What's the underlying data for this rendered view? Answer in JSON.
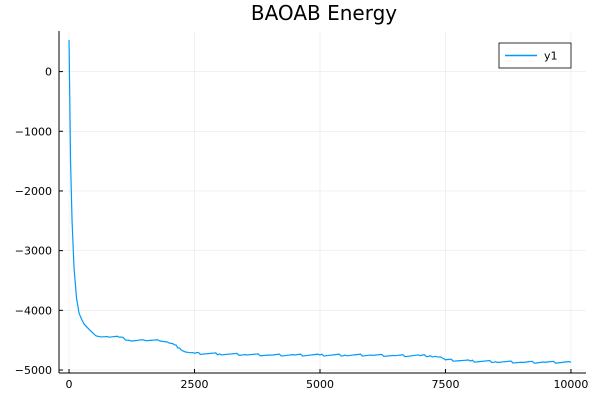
{
  "chart_data": {
    "type": "line",
    "title": "BAOAB Energy",
    "xlabel": "",
    "ylabel": "",
    "xlim": [
      -200,
      10300
    ],
    "ylim": [
      -5050,
      680
    ],
    "x_ticks": [
      0,
      2500,
      5000,
      7500,
      10000
    ],
    "y_ticks": [
      0,
      -1000,
      -2000,
      -3000,
      -4000,
      -5000
    ],
    "x_tick_labels": [
      "0",
      "2500",
      "5000",
      "7500",
      "10000"
    ],
    "y_tick_labels": [
      "0",
      "−1000",
      "−2000",
      "−3000",
      "−4000",
      "−5000"
    ],
    "grid": true,
    "legend": "top-right",
    "series": [
      {
        "name": "y1",
        "color": "#009AFA",
        "x": [
          0,
          30,
          60,
          100,
          150,
          200,
          250,
          300,
          400,
          500,
          600,
          800,
          1000,
          1200,
          1500,
          1800,
          2000,
          2100,
          2200,
          2300,
          2400,
          2500,
          3000,
          3500,
          4000,
          4500,
          5000,
          5500,
          6000,
          6500,
          7000,
          7200,
          7300,
          7400,
          7500,
          8000,
          8500,
          9000,
          9500,
          10000
        ],
        "values": [
          530,
          -1500,
          -2500,
          -3300,
          -3800,
          -4050,
          -4150,
          -4230,
          -4320,
          -4400,
          -4440,
          -4450,
          -4450,
          -4500,
          -4500,
          -4510,
          -4550,
          -4580,
          -4630,
          -4690,
          -4710,
          -4720,
          -4730,
          -4740,
          -4750,
          -4750,
          -4750,
          -4750,
          -4750,
          -4760,
          -4760,
          -4760,
          -4770,
          -4780,
          -4830,
          -4850,
          -4860,
          -4870,
          -4870,
          -4870
        ]
      }
    ]
  }
}
